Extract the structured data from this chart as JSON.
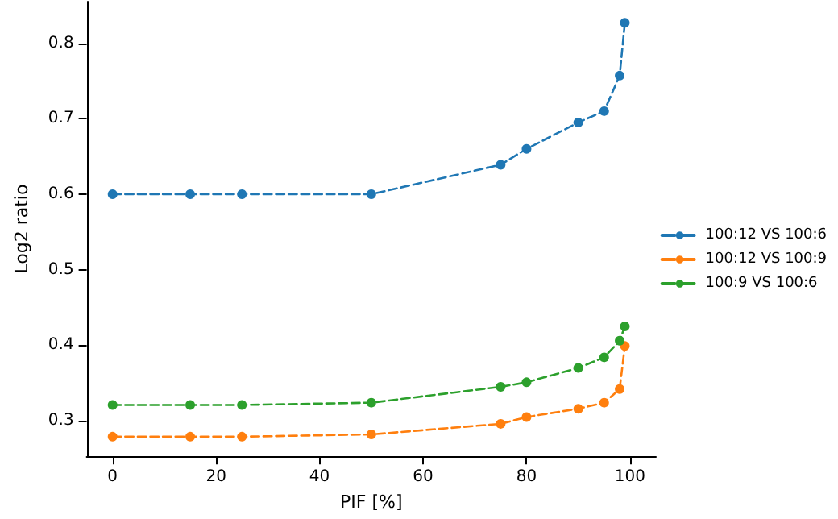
{
  "chart_data": {
    "type": "line",
    "xlabel": "PIF [%]",
    "ylabel": "Log2 ratio",
    "x": [
      0,
      15,
      25,
      50,
      75,
      80,
      90,
      95,
      98,
      99
    ],
    "series": [
      {
        "name": "100:12 VS 100:6",
        "color": "#1f77b4",
        "values": [
          0.6,
          0.6,
          0.6,
          0.6,
          0.639,
          0.66,
          0.695,
          0.71,
          0.757,
          0.827
        ]
      },
      {
        "name": "100:12 VS 100:9",
        "color": "#ff7f0e",
        "values": [
          0.279,
          0.279,
          0.279,
          0.282,
          0.296,
          0.305,
          0.316,
          0.324,
          0.342,
          0.399
        ]
      },
      {
        "name": "100:9 VS 100:6",
        "color": "#2ca02c",
        "values": [
          0.321,
          0.321,
          0.321,
          0.324,
          0.345,
          0.351,
          0.37,
          0.384,
          0.406,
          0.425
        ]
      }
    ],
    "xlim": [
      -5,
      105
    ],
    "xticks": [
      0,
      20,
      40,
      60,
      80,
      100
    ],
    "ylim": [
      0.253,
      0.855
    ],
    "yticks": [
      0.3,
      0.4,
      0.5,
      0.6,
      0.7,
      0.8
    ],
    "grid": false,
    "legend": "right",
    "marker": "circle",
    "line_style": "dashed"
  }
}
